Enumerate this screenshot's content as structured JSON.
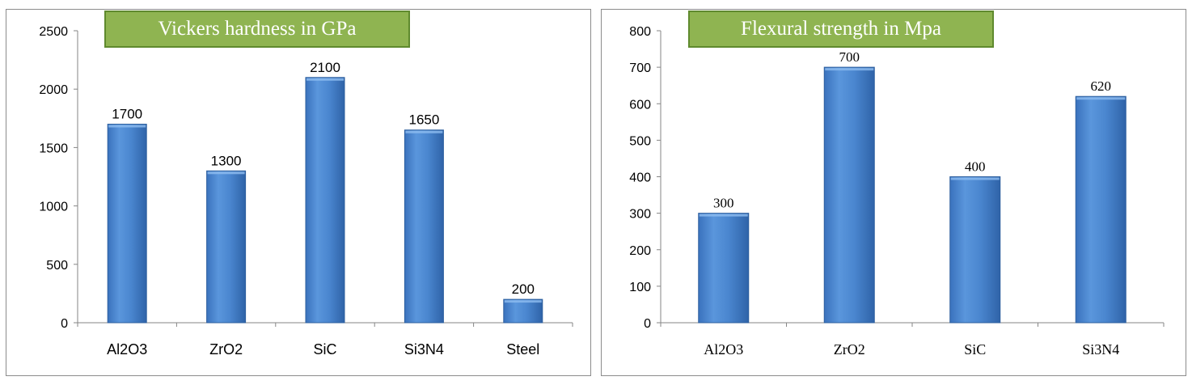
{
  "chart_data": [
    {
      "type": "bar",
      "title": "Vickers hardness in GPa",
      "categories": [
        "Al2O3",
        "ZrO2",
        "SiC",
        "Si3N4",
        "Steel"
      ],
      "values": [
        1700,
        1300,
        2100,
        1650,
        200
      ],
      "ylim": [
        0,
        2500
      ],
      "yticks": [
        0,
        500,
        1000,
        1500,
        2000,
        2500
      ],
      "grid": false,
      "colors": {
        "bar": "#4a86cf",
        "bar_edge": "#2d5f9e",
        "title_bg": "#8fb451"
      }
    },
    {
      "type": "bar",
      "title": "Flexural strength in Mpa",
      "categories": [
        "Al2O3",
        "ZrO2",
        "SiC",
        "Si3N4"
      ],
      "values": [
        300,
        700,
        400,
        620
      ],
      "ylim": [
        0,
        800
      ],
      "yticks": [
        0,
        100,
        200,
        300,
        400,
        500,
        600,
        700,
        800
      ],
      "grid": false,
      "colors": {
        "bar": "#4a86cf",
        "bar_edge": "#2d5f9e",
        "title_bg": "#8fb451"
      }
    }
  ]
}
